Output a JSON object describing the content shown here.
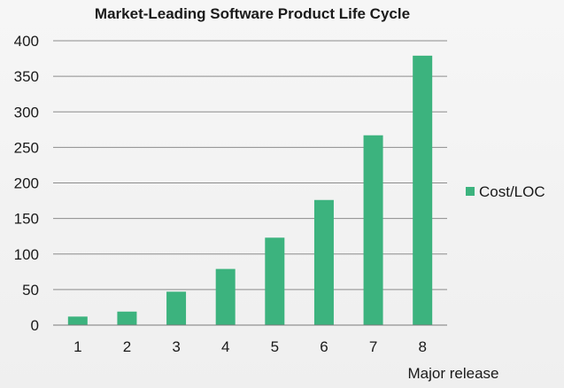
{
  "chart_data": {
    "type": "bar",
    "title": "Market-Leading Software Product Life Cycle",
    "categories": [
      "1",
      "2",
      "3",
      "4",
      "5",
      "6",
      "7",
      "8"
    ],
    "series": [
      {
        "name": "Cost/LOC",
        "values": [
          12,
          19,
          47,
          79,
          123,
          176,
          267,
          379
        ],
        "color": "#3cb37e"
      }
    ],
    "xlabel": "Major release",
    "ylabel": "",
    "ylim": [
      0,
      400
    ],
    "yticks": [
      0,
      50,
      100,
      150,
      200,
      250,
      300,
      350,
      400
    ],
    "grid": true,
    "legend_position": "right"
  }
}
